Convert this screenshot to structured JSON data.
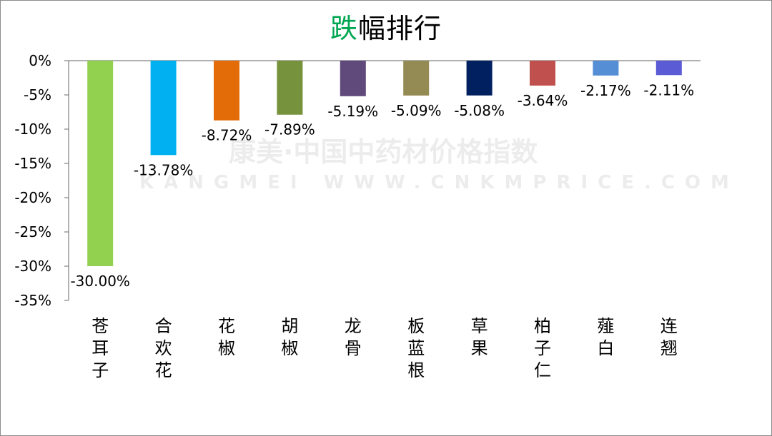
{
  "chart_data": {
    "type": "bar",
    "title_prefix": "跌",
    "title_rest": "幅排行",
    "categories": [
      "苍耳子",
      "合欢花",
      "花椒",
      "胡椒",
      "龙骨",
      "板蓝根",
      "草果",
      "柏子仁",
      "薤白",
      "连翘"
    ],
    "values": [
      -30.0,
      -13.78,
      -8.72,
      -7.89,
      -5.19,
      -5.09,
      -5.08,
      -3.64,
      -2.17,
      -2.11
    ],
    "value_labels": [
      "-30.00%",
      "-13.78%",
      "-8.72%",
      "-7.89%",
      "-5.19%",
      "-5.09%",
      "-5.08%",
      "-3.64%",
      "-2.17%",
      "-2.11%"
    ],
    "colors": [
      "#92d050",
      "#00b0f0",
      "#e36c09",
      "#76923c",
      "#604a7b",
      "#948a54",
      "#002060",
      "#c0504d",
      "#558ed5",
      "#5b5bd6"
    ],
    "ylim": [
      -35,
      0
    ],
    "y_ticks": [
      0,
      -5,
      -10,
      -15,
      -20,
      -25,
      -30,
      -35
    ],
    "y_tick_labels": [
      "0%",
      "-5%",
      "-10%",
      "-15%",
      "-20%",
      "-25%",
      "-30%",
      "-35%"
    ],
    "xlabel": "",
    "ylabel": "",
    "grid": false,
    "legend": "none"
  },
  "watermark": {
    "main": "康美·中国中药材价格指数",
    "sub": "KANGMEI WWW.CNKMPRICE.COM"
  }
}
